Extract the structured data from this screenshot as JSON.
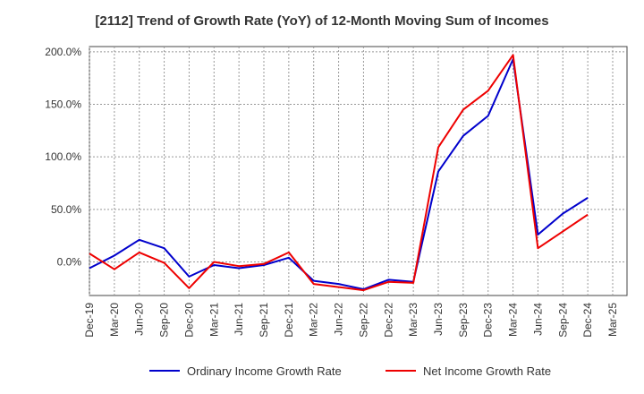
{
  "chart_data": {
    "type": "line",
    "title": "[2112]  Trend of Growth Rate (YoY) of 12-Month Moving Sum of Incomes",
    "xlabel": "",
    "ylabel": "",
    "x_ticks": [
      "Dec-19",
      "Mar-20",
      "Jun-20",
      "Sep-20",
      "Dec-20",
      "Mar-21",
      "Jun-21",
      "Sep-21",
      "Dec-21",
      "Mar-22",
      "Jun-22",
      "Sep-22",
      "Dec-22",
      "Mar-23",
      "Jun-23",
      "Sep-23",
      "Dec-23",
      "Mar-24",
      "Jun-24",
      "Sep-24",
      "Dec-24",
      "Mar-25"
    ],
    "y_ticks": [
      "200.0%",
      "150.0%",
      "100.0%",
      "50.0%",
      "0.0%"
    ],
    "y_tick_values": [
      200,
      150,
      100,
      50,
      0
    ],
    "ylim": [
      -32,
      205
    ],
    "grid": true,
    "legend_position": "bottom",
    "series": [
      {
        "name": "Ordinary Income Growth Rate",
        "color": "#0000cc",
        "points": [
          [
            "Dec-19",
            -6
          ],
          [
            "Mar-20",
            6
          ],
          [
            "Jun-20",
            21
          ],
          [
            "Sep-20",
            13
          ],
          [
            "Dec-20",
            -14
          ],
          [
            "Mar-21",
            -3
          ],
          [
            "Jun-21",
            -6
          ],
          [
            "Sep-21",
            -3
          ],
          [
            "Dec-21",
            4
          ],
          [
            "Mar-22",
            -18
          ],
          [
            "Jun-22",
            -21
          ],
          [
            "Sep-22",
            -26
          ],
          [
            "Dec-22",
            -17
          ],
          [
            "Mar-23",
            -19
          ],
          [
            "Jun-23",
            86
          ],
          [
            "Sep-23",
            120
          ],
          [
            "Dec-23",
            139
          ],
          [
            "Mar-24",
            193
          ],
          [
            "Jun-24",
            26
          ],
          [
            "Sep-24",
            46
          ],
          [
            "Dec-24",
            61
          ]
        ]
      },
      {
        "name": "Net Income Growth Rate",
        "color": "#ee0000",
        "points": [
          [
            "Dec-19",
            8
          ],
          [
            "Mar-20",
            -7
          ],
          [
            "Jun-20",
            9
          ],
          [
            "Sep-20",
            -1
          ],
          [
            "Dec-20",
            -25
          ],
          [
            "Mar-21",
            0
          ],
          [
            "Jun-21",
            -4
          ],
          [
            "Sep-21",
            -2
          ],
          [
            "Dec-21",
            9
          ],
          [
            "Mar-22",
            -21
          ],
          [
            "Jun-22",
            -24
          ],
          [
            "Sep-22",
            -27
          ],
          [
            "Dec-22",
            -19
          ],
          [
            "Mar-23",
            -20
          ],
          [
            "Jun-23",
            109
          ],
          [
            "Sep-23",
            145
          ],
          [
            "Dec-23",
            163
          ],
          [
            "Mar-24",
            197
          ],
          [
            "Jun-24",
            13
          ],
          [
            "Sep-24",
            29
          ],
          [
            "Dec-24",
            45
          ]
        ]
      }
    ]
  }
}
